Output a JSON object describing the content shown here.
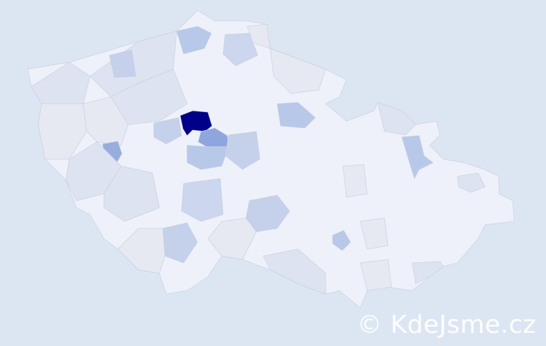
{
  "map": {
    "colors": {
      "background": "#dce6f3",
      "base_region": "#eef1f9",
      "highest": "#000088",
      "high": "#8ea6dd",
      "medium": "#b8c8e8",
      "low": "#dde3f1",
      "border": "#c9cfe3"
    }
  },
  "watermark": "© KdeJsme.cz"
}
